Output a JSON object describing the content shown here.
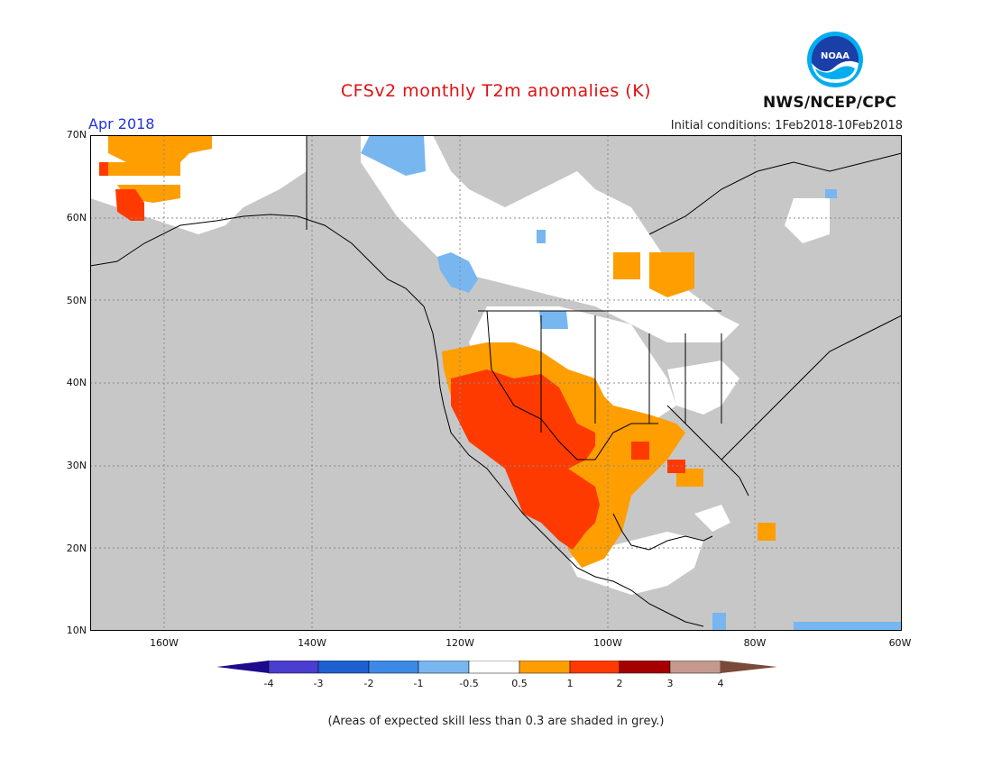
{
  "title": "CFSv2 monthly T2m anomalies (K)",
  "month_label": "Apr 2018",
  "init_conditions": "Initial conditions:  1Feb2018-10Feb2018",
  "org_label": "NWS/NCEP/CPC",
  "logo_text": "NOAA",
  "note": "(Areas of expected skill less than 0.3 are shaded in grey.)",
  "lat_labels": [
    "70N",
    "60N",
    "50N",
    "40N",
    "30N",
    "20N",
    "10N"
  ],
  "lon_labels": [
    "160W",
    "140W",
    "120W",
    "100W",
    "80W",
    "60W"
  ],
  "colorbar": {
    "ticks": [
      "-4",
      "-3",
      "-2",
      "-1",
      "-0.5",
      "0.5",
      "1",
      "2",
      "3",
      "4"
    ],
    "colors": [
      "#1d0a8c",
      "#4b3dd0",
      "#1f60d0",
      "#3b8ae6",
      "#78b6f0",
      "#ffffff",
      "#ff9e00",
      "#ff3a00",
      "#a50000",
      "#c59a8e",
      "#7a4a3a"
    ]
  },
  "colors": {
    "grey_skill": "#c7c7c7",
    "ocean_low_skill": "#c7c7c7",
    "title_red": "#e01010",
    "month_blue": "#2233dd"
  },
  "regions": {
    "southwest_us_mexico": "very warm (+1 to +2 K)",
    "southern_plains_gulf": "warm (+0.5 to +1 K)",
    "western_alaska": "warm (+0.5 to +2 K)",
    "northern_canada_patches": "cool (-0.5 to -1 K)"
  }
}
